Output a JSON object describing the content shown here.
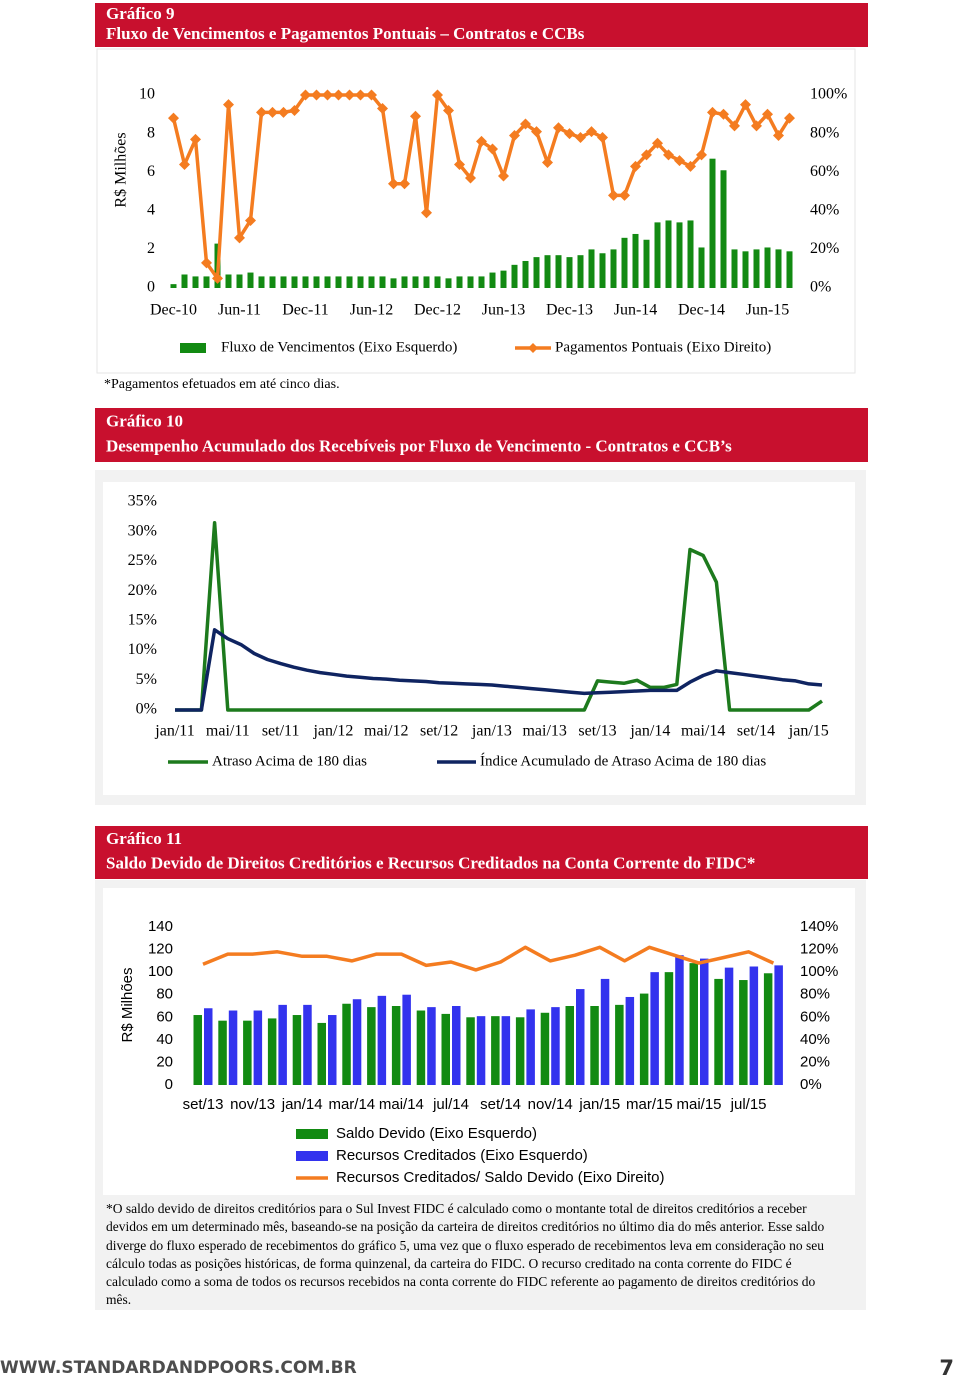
{
  "chart_data": [
    {
      "type": "combo",
      "title": "Gráfico 9",
      "subtitle": "Fluxo de Vencimentos e Pagamentos Pontuais – Contratos e CCBs",
      "y_label": "R$ Milhões",
      "categories": [
        "Dec-10",
        null,
        null,
        null,
        null,
        null,
        "Jun-11",
        null,
        null,
        null,
        null,
        null,
        "Dec-11",
        null,
        null,
        null,
        null,
        null,
        "Jun-12",
        null,
        null,
        null,
        null,
        null,
        "Dec-12",
        null,
        null,
        null,
        null,
        null,
        "Jun-13",
        null,
        null,
        null,
        null,
        null,
        "Dec-13",
        null,
        null,
        null,
        null,
        null,
        "Jun-14",
        null,
        null,
        null,
        null,
        null,
        "Dec-14",
        null,
        null,
        null,
        null,
        null,
        "Jun-15",
        null,
        null
      ],
      "series": [
        {
          "name": "Fluxo de Vencimentos (Eixo Esquerdo)",
          "type": "bar",
          "color": "#128a12",
          "values": [
            0.2,
            0.7,
            0.6,
            0.6,
            2.3,
            0.7,
            0.7,
            0.8,
            0.6,
            0.6,
            0.6,
            0.6,
            0.6,
            0.6,
            0.6,
            0.6,
            0.6,
            0.6,
            0.6,
            0.6,
            0.5,
            0.6,
            0.6,
            0.6,
            0.6,
            0.5,
            0.6,
            0.6,
            0.6,
            0.8,
            0.9,
            1.2,
            1.4,
            1.6,
            1.7,
            1.7,
            1.6,
            1.7,
            2.0,
            1.8,
            2.0,
            2.6,
            2.8,
            2.5,
            3.4,
            3.5,
            3.4,
            3.5,
            2.1,
            6.7,
            6.1,
            2.0,
            1.9,
            2.0,
            2.1,
            2.0,
            1.9
          ]
        },
        {
          "name": "Pagamentos Pontuais (Eixo Direito)",
          "type": "line",
          "axis": "y2",
          "color": "#f47c20",
          "marker": "diamond",
          "values": [
            88,
            64,
            77,
            13,
            5,
            95,
            26,
            35,
            91,
            91,
            91,
            92,
            100,
            100,
            100,
            100,
            100,
            100,
            100,
            93,
            54,
            54,
            89,
            39,
            100,
            92,
            64,
            57,
            76,
            72,
            58,
            79,
            85,
            81,
            65,
            83,
            80,
            78,
            81,
            78,
            48,
            48,
            63,
            69,
            75,
            69,
            66,
            63,
            69,
            91,
            90,
            84,
            95,
            84,
            90,
            79,
            88
          ]
        }
      ],
      "ylim": [
        0,
        10
      ],
      "yticks": [
        0,
        2,
        4,
        6,
        8,
        10
      ],
      "y2lim": [
        0,
        100
      ],
      "y2ticks": [
        {
          "value": 0,
          "label": "0%"
        },
        {
          "value": 20,
          "label": "20%"
        },
        {
          "value": 40,
          "label": "40%"
        },
        {
          "value": 60,
          "label": "60%"
        },
        {
          "value": 80,
          "label": "80%"
        },
        {
          "value": 100,
          "label": "100%"
        }
      ],
      "note": "*Pagamentos efetuados em até cinco dias."
    },
    {
      "type": "line",
      "title": "Gráfico 10",
      "subtitle": "Desempenho Acumulado dos Recebíveis por Fluxo de Vencimento - Contratos e CCB’s",
      "categories": [
        "jan/11",
        null,
        null,
        null,
        "mai/11",
        null,
        null,
        null,
        "set/11",
        null,
        null,
        null,
        "jan/12",
        null,
        null,
        null,
        "mai/12",
        null,
        null,
        null,
        "set/12",
        null,
        null,
        null,
        "jan/13",
        null,
        null,
        null,
        "mai/13",
        null,
        null,
        null,
        "set/13",
        null,
        null,
        null,
        "jan/14",
        null,
        null,
        null,
        "mai/14",
        null,
        null,
        null,
        "set/14",
        null,
        null,
        null,
        "jan/15",
        null
      ],
      "series": [
        {
          "name": "Atraso Acima de 180 dias",
          "type": "line",
          "color": "#1d7a1d",
          "values": [
            0,
            0,
            0,
            31.5,
            0,
            0,
            0,
            0,
            0,
            0,
            0,
            0,
            0,
            0,
            0,
            0,
            0,
            0,
            0,
            0,
            0,
            0,
            0,
            0,
            0,
            0,
            0,
            0,
            0,
            0,
            0,
            0,
            4.9,
            4.7,
            4.5,
            5.0,
            3.8,
            3.8,
            4.3,
            27,
            26,
            21.5,
            0,
            0,
            0,
            0,
            0,
            0,
            0,
            1.5
          ]
        },
        {
          "name": "Índice Acumulado de Atraso Acima de 180 dias",
          "type": "line",
          "color": "#0f2461",
          "values": [
            0,
            0,
            0,
            13.5,
            12,
            11,
            9.5,
            8.5,
            7.8,
            7.2,
            6.7,
            6.3,
            6.0,
            5.7,
            5.5,
            5.3,
            5.2,
            5.0,
            4.9,
            4.8,
            4.6,
            4.5,
            4.4,
            4.3,
            4.2,
            4.0,
            3.8,
            3.6,
            3.4,
            3.2,
            3.0,
            2.8,
            2.9,
            3.0,
            3.1,
            3.2,
            3.3,
            3.3,
            3.3,
            4.7,
            5.8,
            6.6,
            6.3,
            6.0,
            5.7,
            5.4,
            5.1,
            4.9,
            4.4,
            4.2
          ]
        }
      ],
      "ylim": [
        0,
        35
      ],
      "yticks": [
        {
          "value": 0,
          "label": "0%"
        },
        {
          "value": 5,
          "label": "5%"
        },
        {
          "value": 10,
          "label": "10%"
        },
        {
          "value": 15,
          "label": "15%"
        },
        {
          "value": 20,
          "label": "20%"
        },
        {
          "value": 25,
          "label": "25%"
        },
        {
          "value": 30,
          "label": "30%"
        },
        {
          "value": 35,
          "label": "35%"
        }
      ]
    },
    {
      "type": "combo",
      "title": "Gráfico 11",
      "subtitle": "Saldo Devido de Direitos Creditórios e Recursos Creditados na Conta Corrente do FIDC*",
      "y_label": "R$ Milhões",
      "categories": [
        "set/13",
        null,
        "nov/13",
        null,
        "jan/14",
        null,
        "mar/14",
        null,
        "mai/14",
        null,
        "jul/14",
        null,
        "set/14",
        null,
        "nov/14",
        null,
        "jan/15",
        null,
        "mar/15",
        null,
        "mai/15",
        null,
        "jul/15",
        null
      ],
      "series": [
        {
          "name": "Saldo Devido (Eixo Esquerdo)",
          "type": "bar",
          "color": "#128a12",
          "values": [
            62,
            57,
            57,
            59,
            62,
            55,
            72,
            69,
            70,
            66,
            63,
            60,
            61,
            60,
            64,
            70,
            70,
            71,
            81,
            100,
            108,
            94,
            93,
            99
          ]
        },
        {
          "name": "Recursos Creditados (Eixo Esquerdo)",
          "type": "bar",
          "color": "#3333ee",
          "values": [
            68,
            66,
            66,
            71,
            71,
            62,
            76,
            79,
            80,
            69,
            70,
            61,
            61,
            67,
            69,
            85,
            94,
            78,
            100,
            115,
            112,
            104,
            105,
            106
          ]
        },
        {
          "name": "Recursos Creditados/ Saldo Devido (Eixo Direito)",
          "type": "line",
          "axis": "y2",
          "color": "#f47c20",
          "values": [
            107,
            116,
            116,
            118,
            114,
            114,
            110,
            116,
            116,
            106,
            109,
            102,
            109,
            122,
            110,
            115,
            122,
            110,
            122,
            115,
            108,
            113,
            118,
            108
          ]
        }
      ],
      "ylim": [
        0,
        140
      ],
      "yticks": [
        0,
        20,
        40,
        60,
        80,
        100,
        120,
        140
      ],
      "y2lim": [
        0,
        140
      ],
      "y2ticks": [
        {
          "value": 0,
          "label": "0%"
        },
        {
          "value": 20,
          "label": "20%"
        },
        {
          "value": 40,
          "label": "40%"
        },
        {
          "value": 60,
          "label": "60%"
        },
        {
          "value": 80,
          "label": "80%"
        },
        {
          "value": 100,
          "label": "100%"
        },
        {
          "value": 120,
          "label": "120%"
        },
        {
          "value": 140,
          "label": "140%"
        }
      ],
      "note": "*O saldo devido de direitos creditórios para o Sul Invest FIDC é calculado como o montante total de direitos creditórios a receber devidos em um determinado mês, baseando-se na posição da carteira de direitos creditórios no último dia do mês anterior. Esse saldo diverge do fluxo esperado de recebimentos do gráfico 5, uma vez que o fluxo esperado de recebimentos leva em consideração no seu cálculo todas as posições históricas, de forma quinzenal, da carteira do FIDC. O recurso creditado na conta corrente do FIDC é calculado como a soma de todos os recursos recebidos na conta corrente do FIDC referente ao pagamento de direitos creditórios do mês."
    }
  ],
  "footer": {
    "site": "WWW.STANDARDANDPOORS.COM.BR",
    "page": "7"
  }
}
